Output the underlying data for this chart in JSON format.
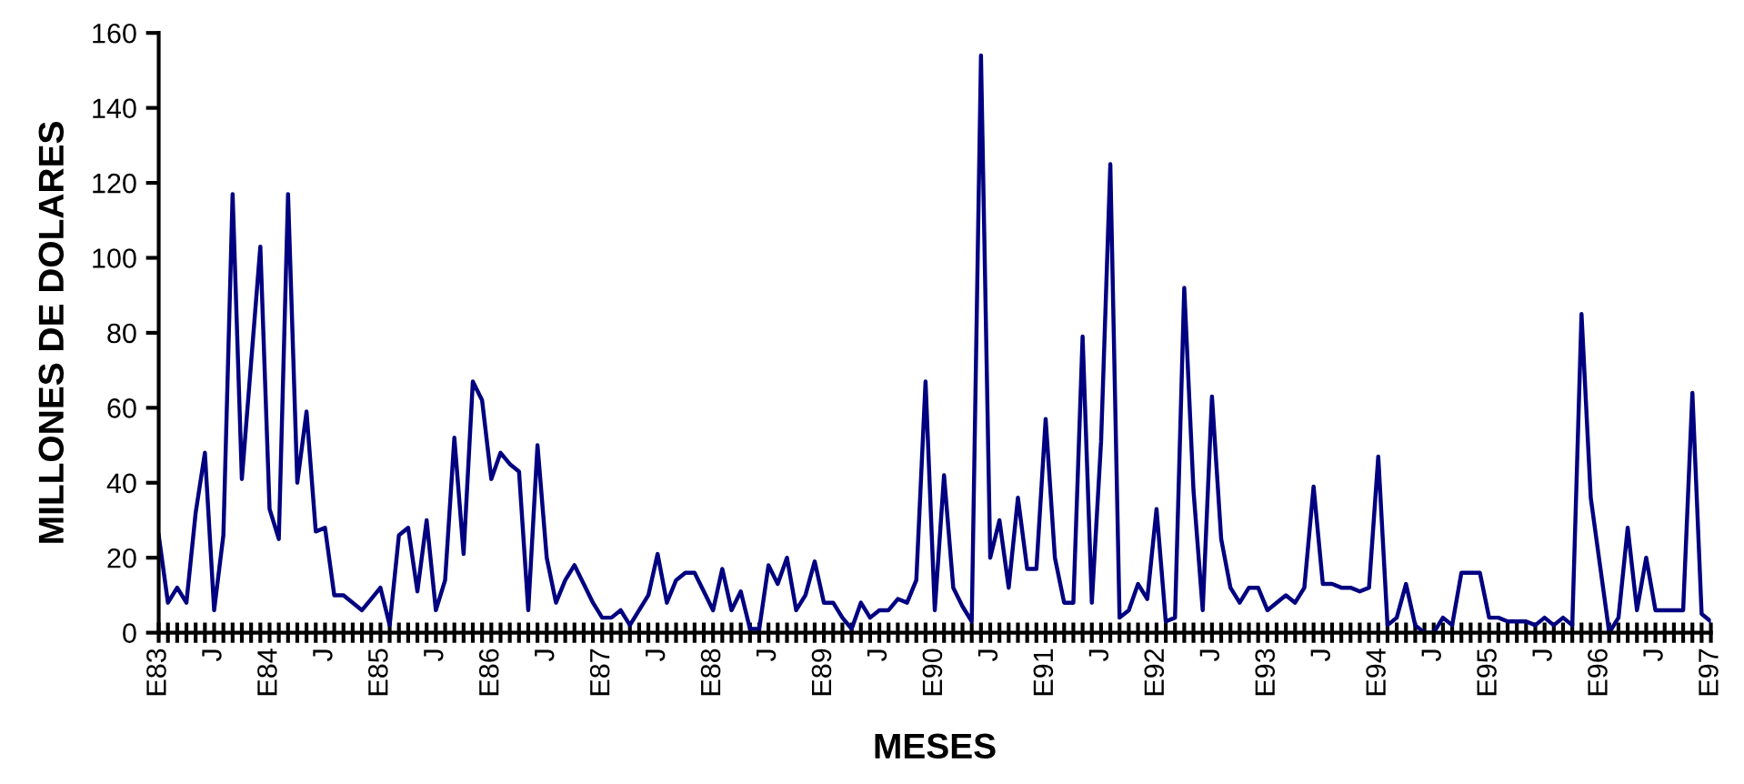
{
  "chart_data": {
    "type": "line",
    "xlabel": "MESES",
    "ylabel": "MILLONES DE DOLARES",
    "categories": [
      "E83",
      null,
      null,
      null,
      null,
      null,
      "J",
      null,
      null,
      null,
      null,
      null,
      "E84",
      null,
      null,
      null,
      null,
      null,
      "J",
      null,
      null,
      null,
      null,
      null,
      "E85",
      null,
      null,
      null,
      null,
      null,
      "J",
      null,
      null,
      null,
      null,
      null,
      "E86",
      null,
      null,
      null,
      null,
      null,
      "J",
      null,
      null,
      null,
      null,
      null,
      "E87",
      null,
      null,
      null,
      null,
      null,
      "J",
      null,
      null,
      null,
      null,
      null,
      "E88",
      null,
      null,
      null,
      null,
      null,
      "J",
      null,
      null,
      null,
      null,
      null,
      "E89",
      null,
      null,
      null,
      null,
      null,
      "J",
      null,
      null,
      null,
      null,
      null,
      "E90",
      null,
      null,
      null,
      null,
      null,
      "J",
      null,
      null,
      null,
      null,
      null,
      "E91",
      null,
      null,
      null,
      null,
      null,
      "J",
      null,
      null,
      null,
      null,
      null,
      "E92",
      null,
      null,
      null,
      null,
      null,
      "J",
      null,
      null,
      null,
      null,
      null,
      "E93",
      null,
      null,
      null,
      null,
      null,
      "J",
      null,
      null,
      null,
      null,
      null,
      "E94",
      null,
      null,
      null,
      null,
      null,
      "J",
      null,
      null,
      null,
      null,
      null,
      "E95",
      null,
      null,
      null,
      null,
      null,
      "J",
      null,
      null,
      null,
      null,
      null,
      "E96",
      null,
      null,
      null,
      null,
      null,
      "J",
      null,
      null,
      null,
      null,
      null,
      "E97"
    ],
    "series": [
      {
        "color": "#000080",
        "values": [
          26,
          8,
          12,
          8,
          32,
          48,
          6,
          26,
          117,
          41,
          72,
          103,
          33,
          25,
          117,
          40,
          59,
          27,
          28,
          10,
          10,
          8,
          6,
          9,
          12,
          2,
          26,
          28,
          11,
          30,
          6,
          14,
          52,
          21,
          67,
          62,
          41,
          48,
          45,
          43,
          6,
          50,
          20,
          8,
          14,
          18,
          13,
          8,
          4,
          4,
          6,
          2,
          6,
          10,
          21,
          8,
          14,
          16,
          16,
          11,
          6,
          17,
          6,
          11,
          1,
          1,
          18,
          13,
          20,
          6,
          10,
          19,
          8,
          8,
          4,
          1,
          8,
          4,
          6,
          6,
          9,
          8,
          14,
          67,
          6,
          42,
          12,
          7,
          3,
          154,
          20,
          30,
          12,
          36,
          17,
          17,
          57,
          20,
          8,
          8,
          79,
          8,
          51,
          125,
          4,
          6,
          13,
          9,
          33,
          3,
          4,
          92,
          38,
          6,
          63,
          25,
          12,
          8,
          12,
          12,
          6,
          8,
          10,
          8,
          12,
          39,
          13,
          13,
          12,
          12,
          11,
          12,
          47,
          2,
          4,
          13,
          2,
          0,
          0,
          4,
          2,
          16,
          16,
          16,
          4,
          4,
          3,
          3,
          3,
          2,
          4,
          2,
          4,
          2,
          85,
          36,
          18,
          0,
          4,
          28,
          6,
          20,
          6,
          6,
          6,
          6,
          64,
          5,
          3
        ]
      }
    ],
    "ylim": [
      0,
      160
    ],
    "yticks": [
      0,
      20,
      40,
      60,
      80,
      100,
      120,
      140,
      160
    ],
    "grid": false,
    "marker": "none",
    "line_style": "solid"
  }
}
